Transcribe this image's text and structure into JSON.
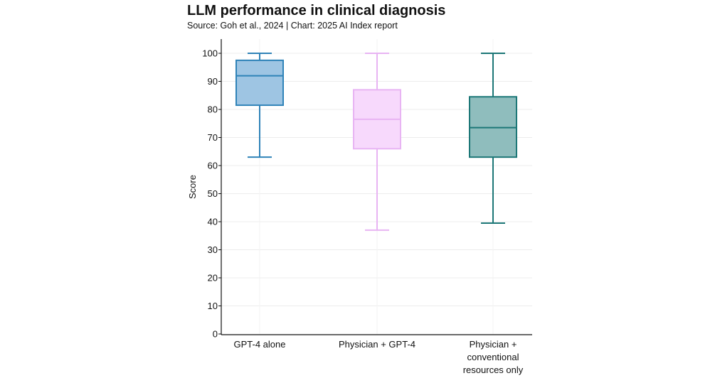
{
  "chart_data": {
    "type": "boxplot",
    "title": "LLM performance in clinical diagnosis",
    "subtitle": "Source: Goh et al., 2024 | Chart: 2025 AI Index report",
    "xlabel": "",
    "ylabel": "Score",
    "ylim": [
      0,
      100
    ],
    "yticks": [
      0,
      10,
      20,
      30,
      40,
      50,
      60,
      70,
      80,
      90,
      100
    ],
    "grid": true,
    "categories": [
      [
        "GPT-4 alone"
      ],
      [
        "Physician + GPT-4"
      ],
      [
        "Physician +",
        "conventional",
        "resources only"
      ]
    ],
    "series": [
      {
        "name": "GPT-4 alone",
        "min": 63,
        "q1": 81.5,
        "median": 92,
        "q3": 97.5,
        "max": 100,
        "fill": "#9ec5e3",
        "stroke": "#2f83b8"
      },
      {
        "name": "Physician + GPT-4",
        "min": 37,
        "q1": 66,
        "median": 76.5,
        "q3": 87,
        "max": 100,
        "fill": "#f7d9fc",
        "stroke": "#e8b4f3"
      },
      {
        "name": "Physician + conventional resources only",
        "min": 39.5,
        "q1": 63,
        "median": 73.5,
        "q3": 84.5,
        "max": 100,
        "fill": "#8fbdbd",
        "stroke": "#1c7777"
      }
    ]
  }
}
